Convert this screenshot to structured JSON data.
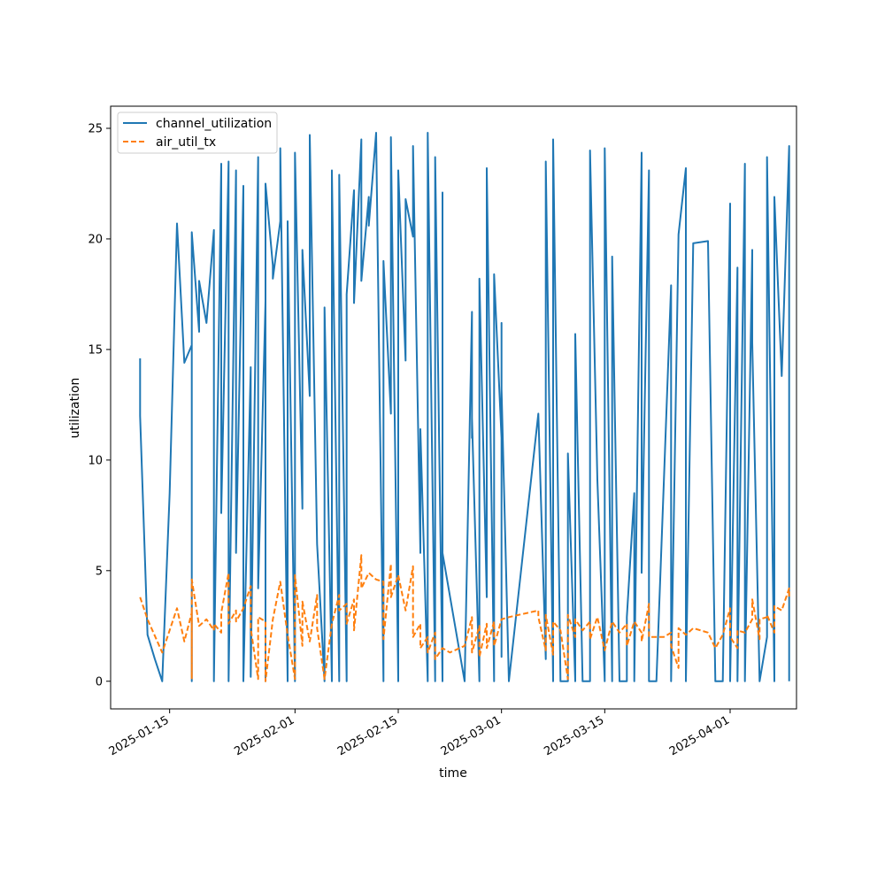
{
  "chart_data": {
    "type": "line",
    "title": "",
    "xlabel": "time",
    "ylabel": "utilization",
    "xlim": [
      "2025-01-07",
      "2025-04-10"
    ],
    "ylim": [
      -1.25,
      26
    ],
    "grid": false,
    "legend_position": "top-left",
    "x_ticks": [
      "2025-01-15",
      "2025-02-01",
      "2025-02-15",
      "2025-03-01",
      "2025-03-15",
      "2025-04-01"
    ],
    "y_ticks": [
      0,
      5,
      10,
      15,
      20,
      25
    ],
    "series": [
      {
        "name": "channel_utilization",
        "color": "#1f77b4",
        "dash": "solid",
        "points": [
          [
            "2025-01-11",
            14.6
          ],
          [
            "2025-01-11",
            12.0
          ],
          [
            "2025-01-12",
            2.1
          ],
          [
            "2025-01-13",
            1.0
          ],
          [
            "2025-01-14",
            0.0
          ],
          [
            "2025-01-15",
            8.5
          ],
          [
            "2025-01-16",
            20.7
          ],
          [
            "2025-01-17",
            14.4
          ],
          [
            "2025-01-18",
            15.2
          ],
          [
            "2025-01-18",
            0.0
          ],
          [
            "2025-01-18",
            20.3
          ],
          [
            "2025-01-19",
            15.8
          ],
          [
            "2025-01-19",
            18.1
          ],
          [
            "2025-01-20",
            16.2
          ],
          [
            "2025-01-21",
            20.4
          ],
          [
            "2025-01-21",
            0.0
          ],
          [
            "2025-01-22",
            23.4
          ],
          [
            "2025-01-22",
            7.6
          ],
          [
            "2025-01-23",
            23.5
          ],
          [
            "2025-01-23",
            0.0
          ],
          [
            "2025-01-24",
            23.1
          ],
          [
            "2025-01-24",
            5.8
          ],
          [
            "2025-01-25",
            22.4
          ],
          [
            "2025-01-25",
            0.0
          ],
          [
            "2025-01-26",
            14.2
          ],
          [
            "2025-01-26",
            0.2
          ],
          [
            "2025-01-27",
            23.7
          ],
          [
            "2025-01-27",
            4.2
          ],
          [
            "2025-01-28",
            17.2
          ],
          [
            "2025-01-28",
            0.0
          ],
          [
            "2025-01-28",
            22.5
          ],
          [
            "2025-01-29",
            18.8
          ],
          [
            "2025-01-29",
            18.2
          ],
          [
            "2025-01-30",
            20.8
          ],
          [
            "2025-01-30",
            24.1
          ],
          [
            "2025-01-31",
            0.0
          ],
          [
            "2025-01-31",
            20.8
          ],
          [
            "2025-02-01",
            0.0
          ],
          [
            "2025-02-01",
            23.9
          ],
          [
            "2025-02-02",
            7.8
          ],
          [
            "2025-02-02",
            19.5
          ],
          [
            "2025-02-03",
            12.9
          ],
          [
            "2025-02-03",
            24.7
          ],
          [
            "2025-02-04",
            6.2
          ],
          [
            "2025-02-05",
            0.0
          ],
          [
            "2025-02-05",
            16.9
          ],
          [
            "2025-02-06",
            0.0
          ],
          [
            "2025-02-06",
            23.1
          ],
          [
            "2025-02-07",
            0.0
          ],
          [
            "2025-02-07",
            22.9
          ],
          [
            "2025-02-08",
            0.0
          ],
          [
            "2025-02-08",
            17.5
          ],
          [
            "2025-02-09",
            22.2
          ],
          [
            "2025-02-09",
            17.1
          ],
          [
            "2025-02-10",
            24.5
          ],
          [
            "2025-02-10",
            18.1
          ],
          [
            "2025-02-11",
            21.9
          ],
          [
            "2025-02-11",
            20.6
          ],
          [
            "2025-02-12",
            24.8
          ],
          [
            "2025-02-13",
            0.0
          ],
          [
            "2025-02-13",
            19.0
          ],
          [
            "2025-02-14",
            12.1
          ],
          [
            "2025-02-14",
            24.6
          ],
          [
            "2025-02-15",
            0.0
          ],
          [
            "2025-02-15",
            23.1
          ],
          [
            "2025-02-16",
            14.5
          ],
          [
            "2025-02-16",
            21.8
          ],
          [
            "2025-02-17",
            20.1
          ],
          [
            "2025-02-17",
            24.2
          ],
          [
            "2025-02-18",
            5.8
          ],
          [
            "2025-02-18",
            11.4
          ],
          [
            "2025-02-19",
            0.0
          ],
          [
            "2025-02-19",
            24.8
          ],
          [
            "2025-02-20",
            0.0
          ],
          [
            "2025-02-20",
            23.7
          ],
          [
            "2025-02-21",
            0.0
          ],
          [
            "2025-02-21",
            22.1
          ],
          [
            "2025-02-21",
            5.8
          ],
          [
            "2025-02-24",
            0.0
          ],
          [
            "2025-02-25",
            16.7
          ],
          [
            "2025-02-25",
            11.0
          ],
          [
            "2025-02-25",
            11.9
          ],
          [
            "2025-02-26",
            0.0
          ],
          [
            "2025-02-26",
            18.2
          ],
          [
            "2025-02-27",
            3.8
          ],
          [
            "2025-02-27",
            23.2
          ],
          [
            "2025-02-28",
            0.0
          ],
          [
            "2025-02-28",
            18.4
          ],
          [
            "2025-03-01",
            11.0
          ],
          [
            "2025-03-01",
            16.2
          ],
          [
            "2025-03-01",
            1.1
          ],
          [
            "2025-03-01",
            13.2
          ],
          [
            "2025-03-02",
            0.0
          ],
          [
            "2025-03-06",
            12.1
          ],
          [
            "2025-03-07",
            1.0
          ],
          [
            "2025-03-07",
            23.5
          ],
          [
            "2025-03-08",
            0.0
          ],
          [
            "2025-03-08",
            24.5
          ],
          [
            "2025-03-09",
            0.0
          ],
          [
            "2025-03-10",
            0.0
          ],
          [
            "2025-03-10",
            10.3
          ],
          [
            "2025-03-11",
            0.0
          ],
          [
            "2025-03-11",
            15.7
          ],
          [
            "2025-03-12",
            0.0
          ],
          [
            "2025-03-13",
            0.0
          ],
          [
            "2025-03-13",
            24.0
          ],
          [
            "2025-03-14",
            9.1
          ],
          [
            "2025-03-15",
            0.0
          ],
          [
            "2025-03-15",
            24.1
          ],
          [
            "2025-03-16",
            0.0
          ],
          [
            "2025-03-16",
            19.2
          ],
          [
            "2025-03-17",
            0.0
          ],
          [
            "2025-03-18",
            0.0
          ],
          [
            "2025-03-18",
            2.9
          ],
          [
            "2025-03-19",
            8.5
          ],
          [
            "2025-03-19",
            0.0
          ],
          [
            "2025-03-20",
            23.9
          ],
          [
            "2025-03-20",
            4.9
          ],
          [
            "2025-03-21",
            23.1
          ],
          [
            "2025-03-21",
            0.0
          ],
          [
            "2025-03-22",
            0.0
          ],
          [
            "2025-03-23",
            8.9
          ],
          [
            "2025-03-24",
            17.9
          ],
          [
            "2025-03-24",
            0.0
          ],
          [
            "2025-03-25",
            20.2
          ],
          [
            "2025-03-26",
            23.2
          ],
          [
            "2025-03-26",
            0.0
          ],
          [
            "2025-03-27",
            19.8
          ],
          [
            "2025-03-29",
            19.9
          ],
          [
            "2025-03-30",
            0.0
          ],
          [
            "2025-03-31",
            0.0
          ],
          [
            "2025-04-01",
            21.6
          ],
          [
            "2025-04-01",
            0.0
          ],
          [
            "2025-04-02",
            18.7
          ],
          [
            "2025-04-02",
            0.0
          ],
          [
            "2025-04-03",
            23.4
          ],
          [
            "2025-04-03",
            0.0
          ],
          [
            "2025-04-04",
            19.5
          ],
          [
            "2025-04-04",
            15.3
          ],
          [
            "2025-04-05",
            0.0
          ],
          [
            "2025-04-06",
            2.0
          ],
          [
            "2025-04-06",
            23.7
          ],
          [
            "2025-04-07",
            0.0
          ],
          [
            "2025-04-07",
            21.9
          ],
          [
            "2025-04-08",
            13.8
          ],
          [
            "2025-04-09",
            24.2
          ],
          [
            "2025-04-09",
            0.0
          ]
        ]
      },
      {
        "name": "air_util_tx",
        "color": "#ff7f0e",
        "dash": "dashed",
        "points": [
          [
            "2025-01-11",
            3.8
          ],
          [
            "2025-01-12",
            2.8
          ],
          [
            "2025-01-14",
            1.3
          ],
          [
            "2025-01-16",
            3.3
          ],
          [
            "2025-01-17",
            1.8
          ],
          [
            "2025-01-18",
            3.1
          ],
          [
            "2025-01-18",
            0.1
          ],
          [
            "2025-01-18",
            4.6
          ],
          [
            "2025-01-19",
            2.5
          ],
          [
            "2025-01-20",
            2.8
          ],
          [
            "2025-01-21",
            2.3
          ],
          [
            "2025-01-21",
            2.6
          ],
          [
            "2025-01-22",
            2.2
          ],
          [
            "2025-01-22",
            3.1
          ],
          [
            "2025-01-23",
            4.9
          ],
          [
            "2025-01-23",
            2.6
          ],
          [
            "2025-01-24",
            3.2
          ],
          [
            "2025-01-24",
            2.7
          ],
          [
            "2025-01-25",
            3.3
          ],
          [
            "2025-01-26",
            4.3
          ],
          [
            "2025-01-26",
            2.4
          ],
          [
            "2025-01-27",
            0.1
          ],
          [
            "2025-01-27",
            2.9
          ],
          [
            "2025-01-28",
            2.7
          ],
          [
            "2025-01-28",
            0.0
          ],
          [
            "2025-01-29",
            2.8
          ],
          [
            "2025-01-30",
            4.5
          ],
          [
            "2025-01-31",
            2.1
          ],
          [
            "2025-02-01",
            0.1
          ],
          [
            "2025-02-01",
            4.8
          ],
          [
            "2025-02-02",
            1.6
          ],
          [
            "2025-02-02",
            3.6
          ],
          [
            "2025-02-03",
            1.8
          ],
          [
            "2025-02-04",
            3.9
          ],
          [
            "2025-02-04",
            2.4
          ],
          [
            "2025-02-05",
            0.1
          ],
          [
            "2025-02-06",
            2.6
          ],
          [
            "2025-02-07",
            3.9
          ],
          [
            "2025-02-07",
            3.2
          ],
          [
            "2025-02-08",
            3.5
          ],
          [
            "2025-02-08",
            2.6
          ],
          [
            "2025-02-09",
            3.7
          ],
          [
            "2025-02-09",
            2.3
          ],
          [
            "2025-02-10",
            5.7
          ],
          [
            "2025-02-10",
            4.2
          ],
          [
            "2025-02-11",
            4.9
          ],
          [
            "2025-02-12",
            4.6
          ],
          [
            "2025-02-13",
            4.5
          ],
          [
            "2025-02-13",
            1.9
          ],
          [
            "2025-02-14",
            5.3
          ],
          [
            "2025-02-14",
            3.8
          ],
          [
            "2025-02-15",
            4.8
          ],
          [
            "2025-02-16",
            3.2
          ],
          [
            "2025-02-17",
            5.2
          ],
          [
            "2025-02-17",
            2.0
          ],
          [
            "2025-02-18",
            2.6
          ],
          [
            "2025-02-18",
            1.5
          ],
          [
            "2025-02-19",
            2.0
          ],
          [
            "2025-02-19",
            1.3
          ],
          [
            "2025-02-20",
            2.2
          ],
          [
            "2025-02-20",
            1.0
          ],
          [
            "2025-02-21",
            1.5
          ],
          [
            "2025-02-22",
            1.3
          ],
          [
            "2025-02-24",
            1.6
          ],
          [
            "2025-02-25",
            2.9
          ],
          [
            "2025-02-25",
            1.3
          ],
          [
            "2025-02-26",
            2.5
          ],
          [
            "2025-02-26",
            1.1
          ],
          [
            "2025-02-27",
            2.6
          ],
          [
            "2025-02-27",
            1.5
          ],
          [
            "2025-02-28",
            2.7
          ],
          [
            "2025-02-28",
            1.6
          ],
          [
            "2025-03-01",
            2.8
          ],
          [
            "2025-03-02",
            2.9
          ],
          [
            "2025-03-06",
            3.2
          ],
          [
            "2025-03-06",
            2.9
          ],
          [
            "2025-03-07",
            1.4
          ],
          [
            "2025-03-07",
            3.0
          ],
          [
            "2025-03-08",
            1.2
          ],
          [
            "2025-03-08",
            2.7
          ],
          [
            "2025-03-09",
            2.3
          ],
          [
            "2025-03-10",
            0.1
          ],
          [
            "2025-03-10",
            3.0
          ],
          [
            "2025-03-11",
            2.0
          ],
          [
            "2025-03-11",
            2.8
          ],
          [
            "2025-03-12",
            2.3
          ],
          [
            "2025-03-13",
            2.7
          ],
          [
            "2025-03-13",
            1.9
          ],
          [
            "2025-03-14",
            2.9
          ],
          [
            "2025-03-15",
            1.4
          ],
          [
            "2025-03-16",
            2.7
          ],
          [
            "2025-03-17",
            2.2
          ],
          [
            "2025-03-18",
            2.6
          ],
          [
            "2025-03-18",
            1.6
          ],
          [
            "2025-03-19",
            2.7
          ],
          [
            "2025-03-20",
            2.2
          ],
          [
            "2025-03-20",
            1.8
          ],
          [
            "2025-03-21",
            3.5
          ],
          [
            "2025-03-21",
            2.0
          ],
          [
            "2025-03-23",
            2.0
          ],
          [
            "2025-03-24",
            2.2
          ],
          [
            "2025-03-24",
            1.6
          ],
          [
            "2025-03-25",
            0.6
          ],
          [
            "2025-03-25",
            2.4
          ],
          [
            "2025-03-26",
            2.1
          ],
          [
            "2025-03-27",
            2.4
          ],
          [
            "2025-03-29",
            2.2
          ],
          [
            "2025-03-30",
            1.5
          ],
          [
            "2025-03-31",
            2.1
          ],
          [
            "2025-04-01",
            3.3
          ],
          [
            "2025-04-01",
            2.0
          ],
          [
            "2025-04-02",
            1.5
          ],
          [
            "2025-04-02",
            2.3
          ],
          [
            "2025-04-03",
            2.2
          ],
          [
            "2025-04-04",
            2.8
          ],
          [
            "2025-04-04",
            3.7
          ],
          [
            "2025-04-05",
            1.9
          ],
          [
            "2025-04-05",
            2.8
          ],
          [
            "2025-04-06",
            2.9
          ],
          [
            "2025-04-06",
            3.0
          ],
          [
            "2025-04-07",
            2.2
          ],
          [
            "2025-04-07",
            3.4
          ],
          [
            "2025-04-08",
            3.2
          ],
          [
            "2025-04-09",
            4.2
          ],
          [
            "2025-04-09",
            3.7
          ]
        ]
      }
    ]
  }
}
